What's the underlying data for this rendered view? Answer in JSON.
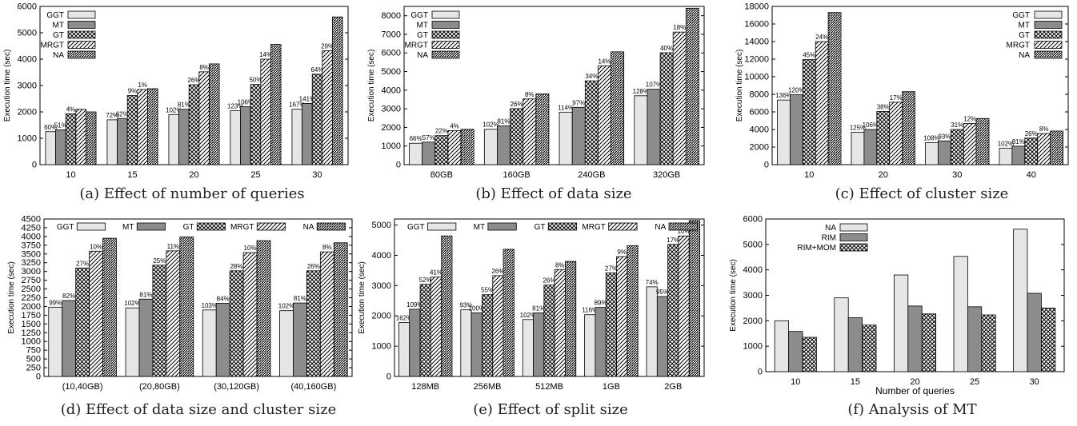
{
  "series_styles": [
    {
      "fill": "#e6e6e6",
      "pattern": "none"
    },
    {
      "fill": "#8c8c8c",
      "pattern": "none"
    },
    {
      "fill": "#ffffff",
      "pattern": "cross"
    },
    {
      "fill": "#ffffff",
      "pattern": "diag"
    },
    {
      "fill": "#ffffff",
      "pattern": "dense"
    }
  ],
  "chart_data": [
    {
      "id": "a",
      "type": "bar",
      "caption": "(a) Effect of number of queries",
      "ylabel": "Execution time (sec)",
      "xlabel": "",
      "ylim": [
        0,
        6000
      ],
      "yticks": [
        0,
        1000,
        2000,
        3000,
        4000,
        5000,
        6000
      ],
      "categories": [
        "10",
        "15",
        "20",
        "25",
        "30"
      ],
      "legend_position": "top-left",
      "series": [
        {
          "name": "GGT",
          "values": [
            1250,
            1700,
            1900,
            2050,
            2100
          ]
        },
        {
          "name": "MT",
          "values": [
            1320,
            1750,
            2100,
            2200,
            2320
          ]
        },
        {
          "name": "GT",
          "values": [
            1930,
            2620,
            3030,
            3040,
            3430
          ]
        },
        {
          "name": "MRGT",
          "values": [
            2100,
            2850,
            3520,
            4000,
            4320
          ]
        },
        {
          "name": "NA",
          "values": [
            2000,
            2880,
            3820,
            4560,
            5600
          ]
        }
      ],
      "annotations": [
        [
          "60%",
          "51%",
          "4%",
          "",
          ""
        ],
        [
          "72%",
          "62%",
          "9%",
          "1%",
          ""
        ],
        [
          "102%",
          "81%",
          "26%",
          "8%",
          ""
        ],
        [
          "123%",
          "106%",
          "50%",
          "14%",
          ""
        ],
        [
          "167%",
          "141%",
          "64%",
          "29%",
          ""
        ]
      ]
    },
    {
      "id": "b",
      "type": "bar",
      "caption": "(b) Effect of data size",
      "ylabel": "Execution time (sec)",
      "xlabel": "",
      "ylim": [
        0,
        8500
      ],
      "yticks": [
        0,
        1000,
        2000,
        3000,
        4000,
        5000,
        6000,
        7000,
        8000
      ],
      "categories": [
        "80GB",
        "160GB",
        "240GB",
        "320GB"
      ],
      "legend_position": "top-left",
      "series": [
        {
          "name": "GGT",
          "values": [
            1150,
            1900,
            2820,
            3700
          ]
        },
        {
          "name": "MT",
          "values": [
            1210,
            2080,
            3080,
            4050
          ]
        },
        {
          "name": "GT",
          "values": [
            1560,
            3010,
            4500,
            6010
          ]
        },
        {
          "name": "MRGT",
          "values": [
            1830,
            3530,
            5310,
            7120
          ]
        },
        {
          "name": "NA",
          "values": [
            1900,
            3800,
            6060,
            8400
          ]
        }
      ],
      "annotations": [
        [
          "66%",
          "57%",
          "22%",
          "4%",
          ""
        ],
        [
          "102%",
          "81%",
          "26%",
          "8%",
          ""
        ],
        [
          "114%",
          "97%",
          "34%",
          "14%",
          ""
        ],
        [
          "128%",
          "107%",
          "40%",
          "18%",
          ""
        ]
      ]
    },
    {
      "id": "c",
      "type": "bar",
      "caption": "(c) Effect of cluster size",
      "ylabel": "Execution time (sec)",
      "xlabel": "",
      "ylim": [
        0,
        18000
      ],
      "yticks": [
        0,
        2000,
        4000,
        6000,
        8000,
        10000,
        12000,
        14000,
        16000,
        18000
      ],
      "categories": [
        "10",
        "20",
        "30",
        "40"
      ],
      "legend_position": "top-right",
      "series": [
        {
          "name": "GGT",
          "values": [
            7350,
            3680,
            2510,
            1880
          ]
        },
        {
          "name": "MT",
          "values": [
            7950,
            4000,
            2700,
            2100
          ]
        },
        {
          "name": "GT",
          "values": [
            11950,
            6050,
            4000,
            3020
          ]
        },
        {
          "name": "MRGT",
          "values": [
            14000,
            7100,
            4680,
            3540
          ]
        },
        {
          "name": "NA",
          "values": [
            17300,
            8300,
            5250,
            3820
          ]
        }
      ],
      "annotations": [
        [
          "136%",
          "120%",
          "45%",
          "24%",
          ""
        ],
        [
          "125%",
          "106%",
          "38%",
          "17%",
          ""
        ],
        [
          "108%",
          "93%",
          "31%",
          "12%",
          ""
        ],
        [
          "102%",
          "81%",
          "26%",
          "8%",
          ""
        ]
      ]
    },
    {
      "id": "d",
      "type": "bar",
      "caption": "(d) Effect of data size and cluster size",
      "ylabel": "Execution time (sec)",
      "xlabel": "",
      "ylim": [
        0,
        4500
      ],
      "yticks": [
        0,
        250,
        500,
        750,
        1000,
        1250,
        1500,
        1750,
        2000,
        2250,
        2500,
        2750,
        3000,
        3250,
        3500,
        3750,
        4000,
        4250,
        4500
      ],
      "categories": [
        "(10,40GB)",
        "(20,80GB)",
        "(30,120GB)",
        "(40,160GB)"
      ],
      "legend_position": "top-row",
      "series": [
        {
          "name": "GGT",
          "values": [
            1980,
            1960,
            1900,
            1880
          ]
        },
        {
          "name": "MT",
          "values": [
            2170,
            2210,
            2090,
            2100
          ]
        },
        {
          "name": "GT",
          "values": [
            3100,
            3180,
            3020,
            3020
          ]
        },
        {
          "name": "MRGT",
          "values": [
            3580,
            3590,
            3540,
            3560
          ]
        },
        {
          "name": "NA",
          "values": [
            3950,
            3990,
            3880,
            3820
          ]
        }
      ],
      "annotations": [
        [
          "99%",
          "82%",
          "27%",
          "10%",
          ""
        ],
        [
          "102%",
          "81%",
          "25%",
          "11%",
          ""
        ],
        [
          "103%",
          "84%",
          "28%",
          "10%",
          ""
        ],
        [
          "102%",
          "81%",
          "26%",
          "8%",
          ""
        ]
      ]
    },
    {
      "id": "e",
      "type": "bar",
      "caption": "(e) Effect of split size",
      "ylabel": "Execution time (sec)",
      "xlabel": "",
      "ylim": [
        0,
        5200
      ],
      "yticks": [
        0,
        1000,
        2000,
        3000,
        4000,
        5000
      ],
      "categories": [
        "128MB",
        "256MB",
        "512MB",
        "1GB",
        "2GB"
      ],
      "legend_position": "top-row",
      "series": [
        {
          "name": "GGT",
          "values": [
            1780,
            2200,
            1880,
            2040,
            2960
          ]
        },
        {
          "name": "MT",
          "values": [
            2220,
            2100,
            2100,
            2280,
            2640
          ]
        },
        {
          "name": "GT",
          "values": [
            3040,
            2700,
            3020,
            3420,
            4360
          ]
        },
        {
          "name": "MRGT",
          "values": [
            3280,
            3330,
            3530,
            3960,
            4640
          ]
        },
        {
          "name": "NA",
          "values": [
            4640,
            4200,
            3800,
            4320,
            5150
          ]
        }
      ],
      "annotations": [
        [
          "162%",
          "109%",
          "52%",
          "41%",
          ""
        ],
        [
          "93%",
          "100%",
          "55%",
          "26%",
          ""
        ],
        [
          "102%",
          "81%",
          "26%",
          "8%",
          ""
        ],
        [
          "116%",
          "89%",
          "27%",
          "9%",
          ""
        ],
        [
          "74%",
          "95%",
          "17%",
          "10%",
          ""
        ]
      ]
    },
    {
      "id": "f",
      "type": "bar",
      "caption": "(f) Analysis of MT",
      "ylabel": "Execution time (sec)",
      "xlabel": "Number of queries",
      "ylim": [
        0,
        6000
      ],
      "yticks": [
        0,
        1000,
        2000,
        3000,
        4000,
        5000,
        6000
      ],
      "categories": [
        "10",
        "15",
        "20",
        "25",
        "30"
      ],
      "legend_position": "top-left",
      "series": [
        {
          "name": "NA",
          "values": [
            2000,
            2900,
            3800,
            4530,
            5600
          ]
        },
        {
          "name": "RIM",
          "values": [
            1580,
            2120,
            2580,
            2550,
            3080
          ]
        },
        {
          "name": "RIM+MOM",
          "values": [
            1350,
            1830,
            2270,
            2230,
            2500
          ]
        }
      ],
      "annotations": []
    }
  ]
}
